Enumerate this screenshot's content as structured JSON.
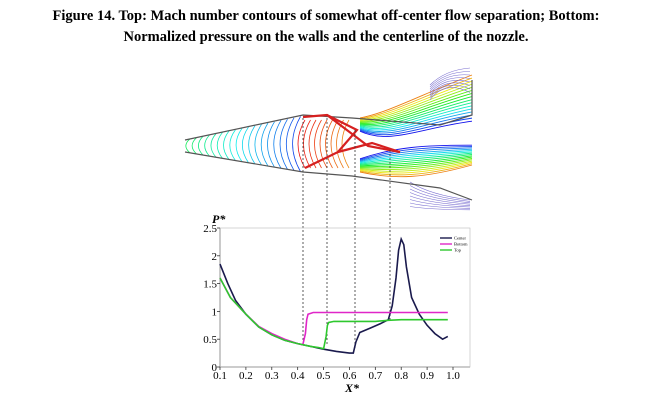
{
  "caption": {
    "line1": "Figure 14. Top: Mach number contours of somewhat off-center flow separation; Bottom:",
    "line2": "Normalized pressure on the walls  and the centerline of the nozzle."
  },
  "chart_data": {
    "type": "line",
    "ylabel": "P*",
    "xlabel": "X*",
    "xlim": [
      0.1,
      1.0
    ],
    "ylim": [
      0,
      2.5
    ],
    "xticks": [
      "0.1",
      "0.2",
      "0.3",
      "0.4",
      "0.5",
      "0.6",
      "0.7",
      "0.8",
      "0.9",
      "1.0"
    ],
    "yticks": [
      "0",
      "0.5",
      "1",
      "1.5",
      "2",
      "2.5"
    ],
    "grid": false,
    "legend_position": "top-right",
    "series": [
      {
        "name": "Center",
        "color": "#1a1a4d",
        "x": [
          0.1,
          0.13,
          0.16,
          0.2,
          0.25,
          0.3,
          0.35,
          0.4,
          0.45,
          0.5,
          0.55,
          0.6,
          0.615,
          0.625,
          0.64,
          0.68,
          0.72,
          0.75,
          0.765,
          0.78,
          0.79,
          0.8,
          0.81,
          0.82,
          0.84,
          0.87,
          0.9,
          0.93,
          0.96,
          0.98
        ],
        "y": [
          1.85,
          1.5,
          1.2,
          0.95,
          0.72,
          0.58,
          0.48,
          0.42,
          0.37,
          0.32,
          0.28,
          0.25,
          0.25,
          0.45,
          0.62,
          0.7,
          0.78,
          0.85,
          1.1,
          1.6,
          2.1,
          2.3,
          2.2,
          1.8,
          1.25,
          0.95,
          0.75,
          0.6,
          0.5,
          0.55
        ]
      },
      {
        "name": "Bottom",
        "color": "#e026c8",
        "x": [
          0.1,
          0.14,
          0.2,
          0.25,
          0.3,
          0.35,
          0.4,
          0.42,
          0.43,
          0.435,
          0.44,
          0.46,
          0.5,
          0.6,
          0.7,
          0.8,
          0.9,
          0.98
        ],
        "y": [
          1.6,
          1.25,
          0.95,
          0.73,
          0.6,
          0.5,
          0.42,
          0.4,
          0.6,
          0.85,
          0.95,
          0.98,
          0.98,
          0.98,
          0.98,
          0.98,
          0.98,
          0.98
        ]
      },
      {
        "name": "Top",
        "color": "#2ec82e",
        "x": [
          0.1,
          0.14,
          0.2,
          0.25,
          0.3,
          0.35,
          0.4,
          0.45,
          0.48,
          0.5,
          0.51,
          0.515,
          0.52,
          0.54,
          0.6,
          0.7,
          0.75,
          0.8,
          0.9,
          0.98
        ],
        "y": [
          1.6,
          1.25,
          0.95,
          0.72,
          0.58,
          0.48,
          0.42,
          0.37,
          0.35,
          0.33,
          0.55,
          0.75,
          0.8,
          0.82,
          0.82,
          0.82,
          0.84,
          0.85,
          0.85,
          0.85
        ]
      }
    ]
  }
}
